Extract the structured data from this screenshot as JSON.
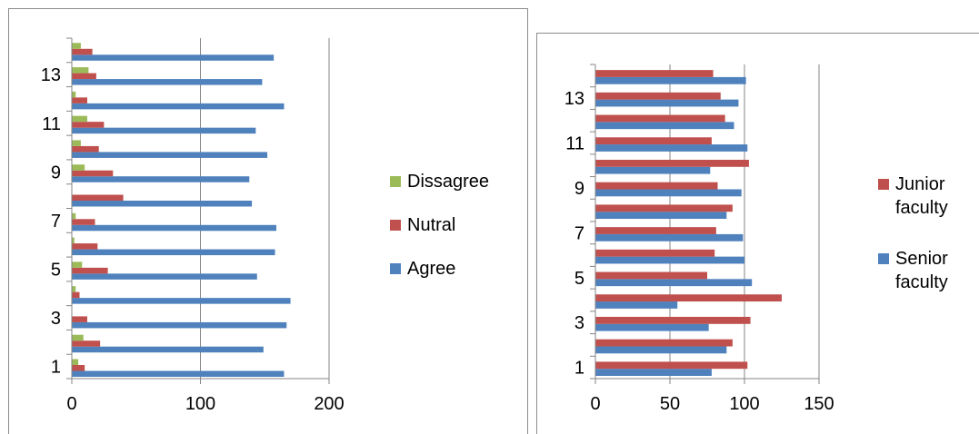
{
  "chart_data": [
    {
      "type": "bar",
      "orientation": "horizontal",
      "categories": [
        "1",
        "2",
        "3",
        "4",
        "5",
        "6",
        "7",
        "8",
        "9",
        "10",
        "11",
        "12",
        "13",
        "14"
      ],
      "y_tick_labels": [
        "1",
        "3",
        "5",
        "7",
        "9",
        "11",
        "13"
      ],
      "x_ticks": [
        0,
        100,
        200
      ],
      "xlim": [
        0,
        200
      ],
      "grid": true,
      "legend_position": "right",
      "series": [
        {
          "name": "Agree",
          "color": "#4f81bd",
          "values": [
            165,
            149,
            167,
            170,
            144,
            158,
            159,
            140,
            138,
            152,
            143,
            165,
            148,
            157
          ]
        },
        {
          "name": "Nutral",
          "color": "#c0504d",
          "values": [
            10,
            22,
            12,
            6,
            28,
            20,
            18,
            40,
            32,
            21,
            25,
            12,
            19,
            16
          ]
        },
        {
          "name": "Dissagree",
          "color": "#9bbb59",
          "values": [
            5,
            9,
            0,
            3,
            8,
            2,
            3,
            0,
            10,
            7,
            12,
            3,
            13,
            7
          ]
        }
      ],
      "legend": [
        "Dissagree",
        "Nutral",
        "Agree"
      ]
    },
    {
      "type": "bar",
      "orientation": "horizontal",
      "categories": [
        "1",
        "2",
        "3",
        "4",
        "5",
        "6",
        "7",
        "8",
        "9",
        "10",
        "11",
        "12",
        "13",
        "14"
      ],
      "y_tick_labels": [
        "1",
        "3",
        "5",
        "7",
        "9",
        "11",
        "13"
      ],
      "x_ticks": [
        0,
        50,
        100,
        150
      ],
      "xlim": [
        0,
        150
      ],
      "grid": true,
      "legend_position": "right",
      "series": [
        {
          "name": "Senior faculty",
          "color": "#4f81bd",
          "values": [
            78,
            88,
            76,
            55,
            105,
            100,
            99,
            88,
            98,
            77,
            102,
            93,
            96,
            101
          ]
        },
        {
          "name": "Junior faculty",
          "color": "#c0504d",
          "values": [
            102,
            92,
            104,
            125,
            75,
            80,
            81,
            92,
            82,
            103,
            78,
            87,
            84,
            79
          ]
        }
      ],
      "legend": [
        "Junior faculty",
        "Senior faculty"
      ]
    }
  ]
}
